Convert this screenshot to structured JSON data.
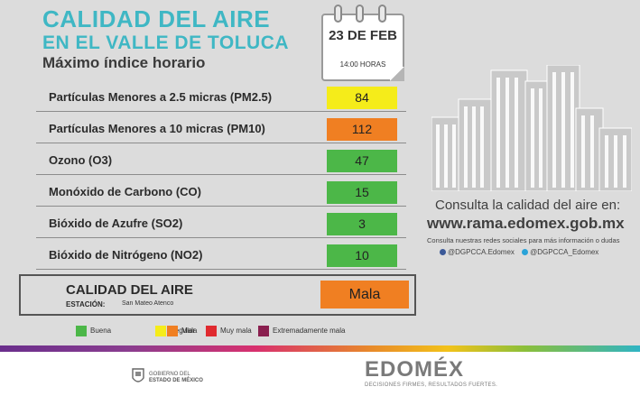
{
  "header": {
    "title_line1": "CALIDAD DEL AIRE",
    "title_line2": "EN EL VALLE DE TOLUCA",
    "subtitle": "Máximo índice horario"
  },
  "calendar": {
    "date": "23 DE FEB",
    "time": "14:00 HORAS"
  },
  "pollutants": [
    {
      "label": "Partículas Menores a 2.5 micras (PM2.5)",
      "value": "84",
      "color": "#f5ec1a"
    },
    {
      "label": "Partículas Menores a 10 micras (PM10)",
      "value": "112",
      "color": "#f07f22"
    },
    {
      "label": "Ozono (O3)",
      "value": "47",
      "color": "#4cb748"
    },
    {
      "label": "Monóxido de Carbono (CO)",
      "value": "15",
      "color": "#4cb748"
    },
    {
      "label": "Bióxido de Azufre (SO2)",
      "value": "3",
      "color": "#4cb748"
    },
    {
      "label": "Bióxido de Nitrógeno (NO2)",
      "value": "10",
      "color": "#4cb748"
    }
  ],
  "summary": {
    "title": "CALIDAD DEL AIRE",
    "station_label": "ESTACIÓN:",
    "station_value": "San Mateo Atenco",
    "quality": "Mala",
    "quality_color": "#f07f22"
  },
  "legend": [
    {
      "label": "Buena",
      "color": "#4cb748"
    },
    {
      "label": "Regular",
      "color": "#f5ec1a"
    },
    {
      "label": "Mala",
      "color": "#f07f22"
    },
    {
      "label": "Muy mala",
      "color": "#e02a2f"
    },
    {
      "label": "Extremadamente mala",
      "color": "#8a1f4f"
    }
  ],
  "info": {
    "consult": "Consulta la calidad del aire en:",
    "url": "www.rama.edomex.gob.mx",
    "social_text": "Consulta nuestras redes sociales para más información o dudas",
    "facebook": "@DGPCCA.Edomex",
    "twitter": "@DGPCCA_Edomex"
  },
  "footer": {
    "gov_line1": "GOBIERNO DEL",
    "gov_line2": "ESTADO DE MÉXICO",
    "brand": "EDOMÉX",
    "slogan": "DECISIONES FIRMES, RESULTADOS FUERTES."
  }
}
